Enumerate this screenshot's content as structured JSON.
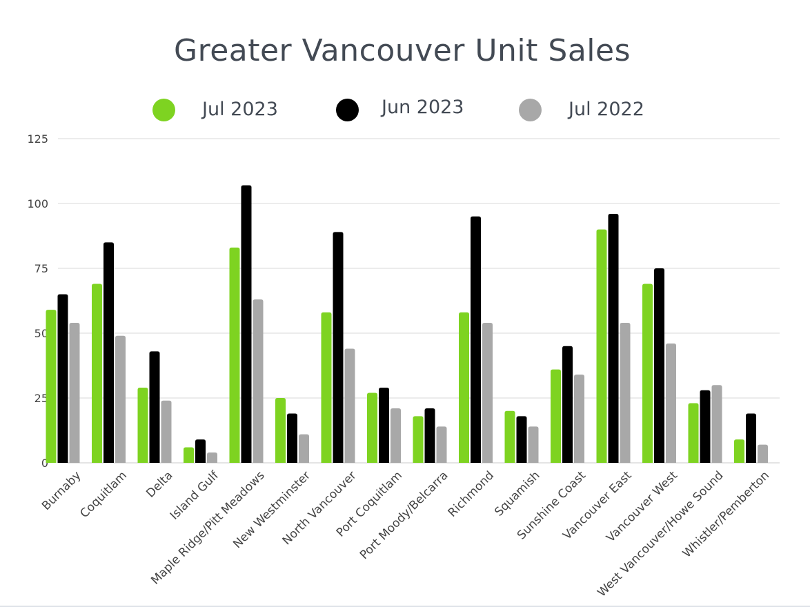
{
  "chart_data": {
    "type": "bar",
    "title": "Greater Vancouver Unit Sales",
    "categories": [
      "Burnaby",
      "Coquitlam",
      "Delta",
      "Island Gulf",
      "Maple Ridge/Pitt Meadows",
      "New Westminster",
      "North Vancouver",
      "Port Coquitlam",
      "Port Moody/Belcarra",
      "Richmond",
      "Squamish",
      "Sunshine Coast",
      "Vancouver East",
      "Vancouver West",
      "West Vancouver/Howe Sound",
      "Whistler/Pemberton"
    ],
    "series": [
      {
        "name": "Jul 2023",
        "color": "#7ed321",
        "values": [
          59,
          69,
          29,
          6,
          83,
          25,
          58,
          27,
          18,
          58,
          20,
          36,
          90,
          69,
          23,
          9
        ]
      },
      {
        "name": "Jun 2023",
        "color": "#000000",
        "values": [
          65,
          85,
          43,
          9,
          107,
          19,
          89,
          29,
          21,
          95,
          18,
          45,
          96,
          75,
          28,
          19
        ]
      },
      {
        "name": "Jul 2022",
        "color": "#a8a8a8",
        "values": [
          54,
          49,
          24,
          4,
          63,
          11,
          44,
          21,
          14,
          54,
          14,
          34,
          54,
          46,
          30,
          7
        ]
      }
    ],
    "ylim": [
      0,
      125
    ],
    "yticks": [
      0,
      25,
      50,
      75,
      100,
      125
    ],
    "grid": true,
    "legend_position": "top"
  }
}
